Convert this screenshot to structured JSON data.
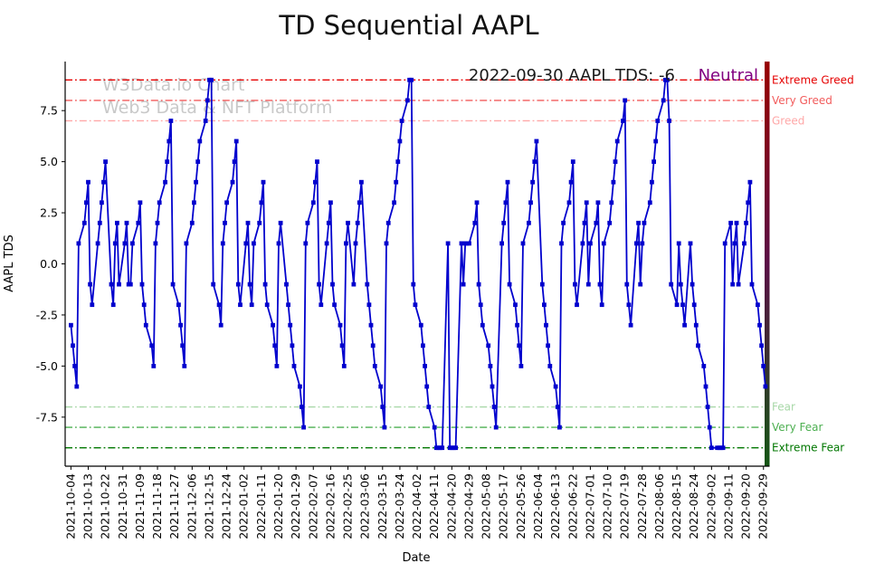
{
  "page": {
    "background": "#ffffff"
  },
  "chart_data": {
    "type": "line",
    "title": "TD Sequential AAPL",
    "xlabel": "Date",
    "ylabel": "AAPL TDS",
    "watermark": {
      "line1": "W3Data.io Chart",
      "line2": "Web3 Data & NFT Platform",
      "color": "#c9c9c9"
    },
    "annotation": {
      "text": "2022-09-30 AAPL TDS: -6",
      "sentiment": "Neutral",
      "text_color": "#1a1a1a",
      "sentiment_color": "#800080"
    },
    "series_name": "AAPL TDS",
    "series_color": "#0000cd",
    "axis_color": "#000000",
    "ylim": [
      -9.9,
      9.9
    ],
    "y_ticks": [
      {
        "value": -7.5,
        "label": "-7.5"
      },
      {
        "value": -5.0,
        "label": "-5.0"
      },
      {
        "value": -2.5,
        "label": "-2.5"
      },
      {
        "value": 0.0,
        "label": "0.0"
      },
      {
        "value": 2.5,
        "label": "2.5"
      },
      {
        "value": 5.0,
        "label": "5.0"
      },
      {
        "value": 7.5,
        "label": "7.5"
      }
    ],
    "x_tick_interval_days": 9,
    "x_tick_labels": [
      "2021-10-04",
      "2021-10-13",
      "2021-10-22",
      "2021-10-31",
      "2021-11-09",
      "2021-11-18",
      "2021-11-27",
      "2021-12-06",
      "2021-12-15",
      "2021-12-24",
      "2022-01-02",
      "2022-01-11",
      "2022-01-20",
      "2022-01-29",
      "2022-02-07",
      "2022-02-16",
      "2022-02-25",
      "2022-03-06",
      "2022-03-15",
      "2022-03-24",
      "2022-04-02",
      "2022-04-11",
      "2022-04-20",
      "2022-04-29",
      "2022-05-08",
      "2022-05-17",
      "2022-05-26",
      "2022-06-04",
      "2022-06-13",
      "2022-06-22",
      "2022-07-01",
      "2022-07-10",
      "2022-07-19",
      "2022-07-28",
      "2022-08-06",
      "2022-08-15",
      "2022-08-24",
      "2022-09-02",
      "2022-09-11",
      "2022-09-20",
      "2022-09-29"
    ],
    "start_date": "2021-10-04",
    "end_date": "2022-09-30",
    "frequency": "weekdays",
    "thresholds": [
      {
        "value": 9,
        "label": "Extreme Greed",
        "color": "#e50000"
      },
      {
        "value": 8,
        "label": "Very Greed",
        "color": "#f25c5c"
      },
      {
        "value": 7,
        "label": "Greed",
        "color": "#ffa8a8"
      },
      {
        "value": -7,
        "label": "Fear",
        "color": "#a8d8a8"
      },
      {
        "value": -8,
        "label": "Very Fear",
        "color": "#4caf50"
      },
      {
        "value": -9,
        "label": "Extreme Fear",
        "color": "#007700"
      }
    ],
    "right_bar_colors": [
      "#990000",
      "#5a0f46",
      "#145614"
    ],
    "values": [
      -3,
      -4,
      -5,
      -6,
      1,
      2,
      3,
      4,
      -1,
      -2,
      1,
      2,
      3,
      4,
      5,
      -1,
      -2,
      1,
      2,
      -1,
      1,
      2,
      -1,
      -1,
      1,
      2,
      3,
      -1,
      -2,
      -3,
      -4,
      -5,
      1,
      2,
      3,
      4,
      5,
      6,
      7,
      -1,
      -2,
      -3,
      -4,
      -5,
      1,
      2,
      3,
      4,
      5,
      6,
      7,
      8,
      9,
      9,
      -1,
      -2,
      -3,
      1,
      2,
      3,
      4,
      5,
      6,
      -1,
      -2,
      1,
      2,
      -1,
      -2,
      1,
      2,
      3,
      4,
      -1,
      -2,
      -3,
      -4,
      -5,
      1,
      2,
      -1,
      -2,
      -3,
      -4,
      -5,
      -6,
      -7,
      -8,
      1,
      2,
      3,
      4,
      5,
      -1,
      -2,
      1,
      2,
      3,
      -1,
      -2,
      -3,
      -4,
      -5,
      1,
      2,
      -1,
      1,
      2,
      3,
      4,
      -1,
      -2,
      -3,
      -4,
      -5,
      -6,
      -7,
      -8,
      1,
      2,
      3,
      4,
      5,
      6,
      7,
      8,
      9,
      9,
      -1,
      -2,
      -3,
      -4,
      -5,
      -6,
      -7,
      -8,
      -9,
      -9,
      -9,
      -9,
      1,
      -9,
      -9,
      -9,
      -9,
      1,
      -1,
      1,
      1,
      1,
      2,
      3,
      -1,
      -2,
      -3,
      -4,
      -5,
      -6,
      -7,
      -8,
      1,
      2,
      3,
      4,
      -1,
      -2,
      -3,
      -4,
      -5,
      1,
      2,
      3,
      4,
      5,
      6,
      -1,
      -2,
      -3,
      -4,
      -5,
      -6,
      -7,
      -8,
      1,
      2,
      3,
      4,
      5,
      -1,
      -2,
      1,
      2,
      3,
      -1,
      1,
      2,
      3,
      -1,
      -2,
      1,
      2,
      3,
      4,
      5,
      6,
      7,
      8,
      -1,
      -2,
      -3,
      1,
      2,
      -1,
      1,
      2,
      3,
      4,
      5,
      6,
      7,
      8,
      9,
      9,
      7,
      -1,
      -2,
      1,
      -1,
      -2,
      -3,
      1,
      -1,
      -2,
      -3,
      -4,
      -5,
      -6,
      -7,
      -8,
      -9,
      -9,
      -9,
      -9,
      -9,
      1,
      2,
      -1,
      1,
      2,
      -1,
      1,
      2,
      3,
      4,
      -1,
      -2,
      -3,
      -4,
      -5,
      -6
    ]
  }
}
